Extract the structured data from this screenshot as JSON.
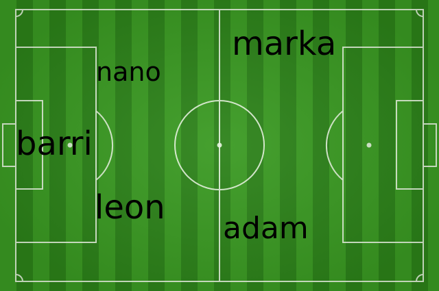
{
  "pitch": {
    "grass_color_light": "#3a9a22",
    "grass_color_dark": "#2c8219",
    "line_color": "#e8f5e0"
  },
  "players": {
    "marka": "marka",
    "nano": "nano",
    "barri": "barri",
    "leon": "leon",
    "adam": "adam"
  }
}
